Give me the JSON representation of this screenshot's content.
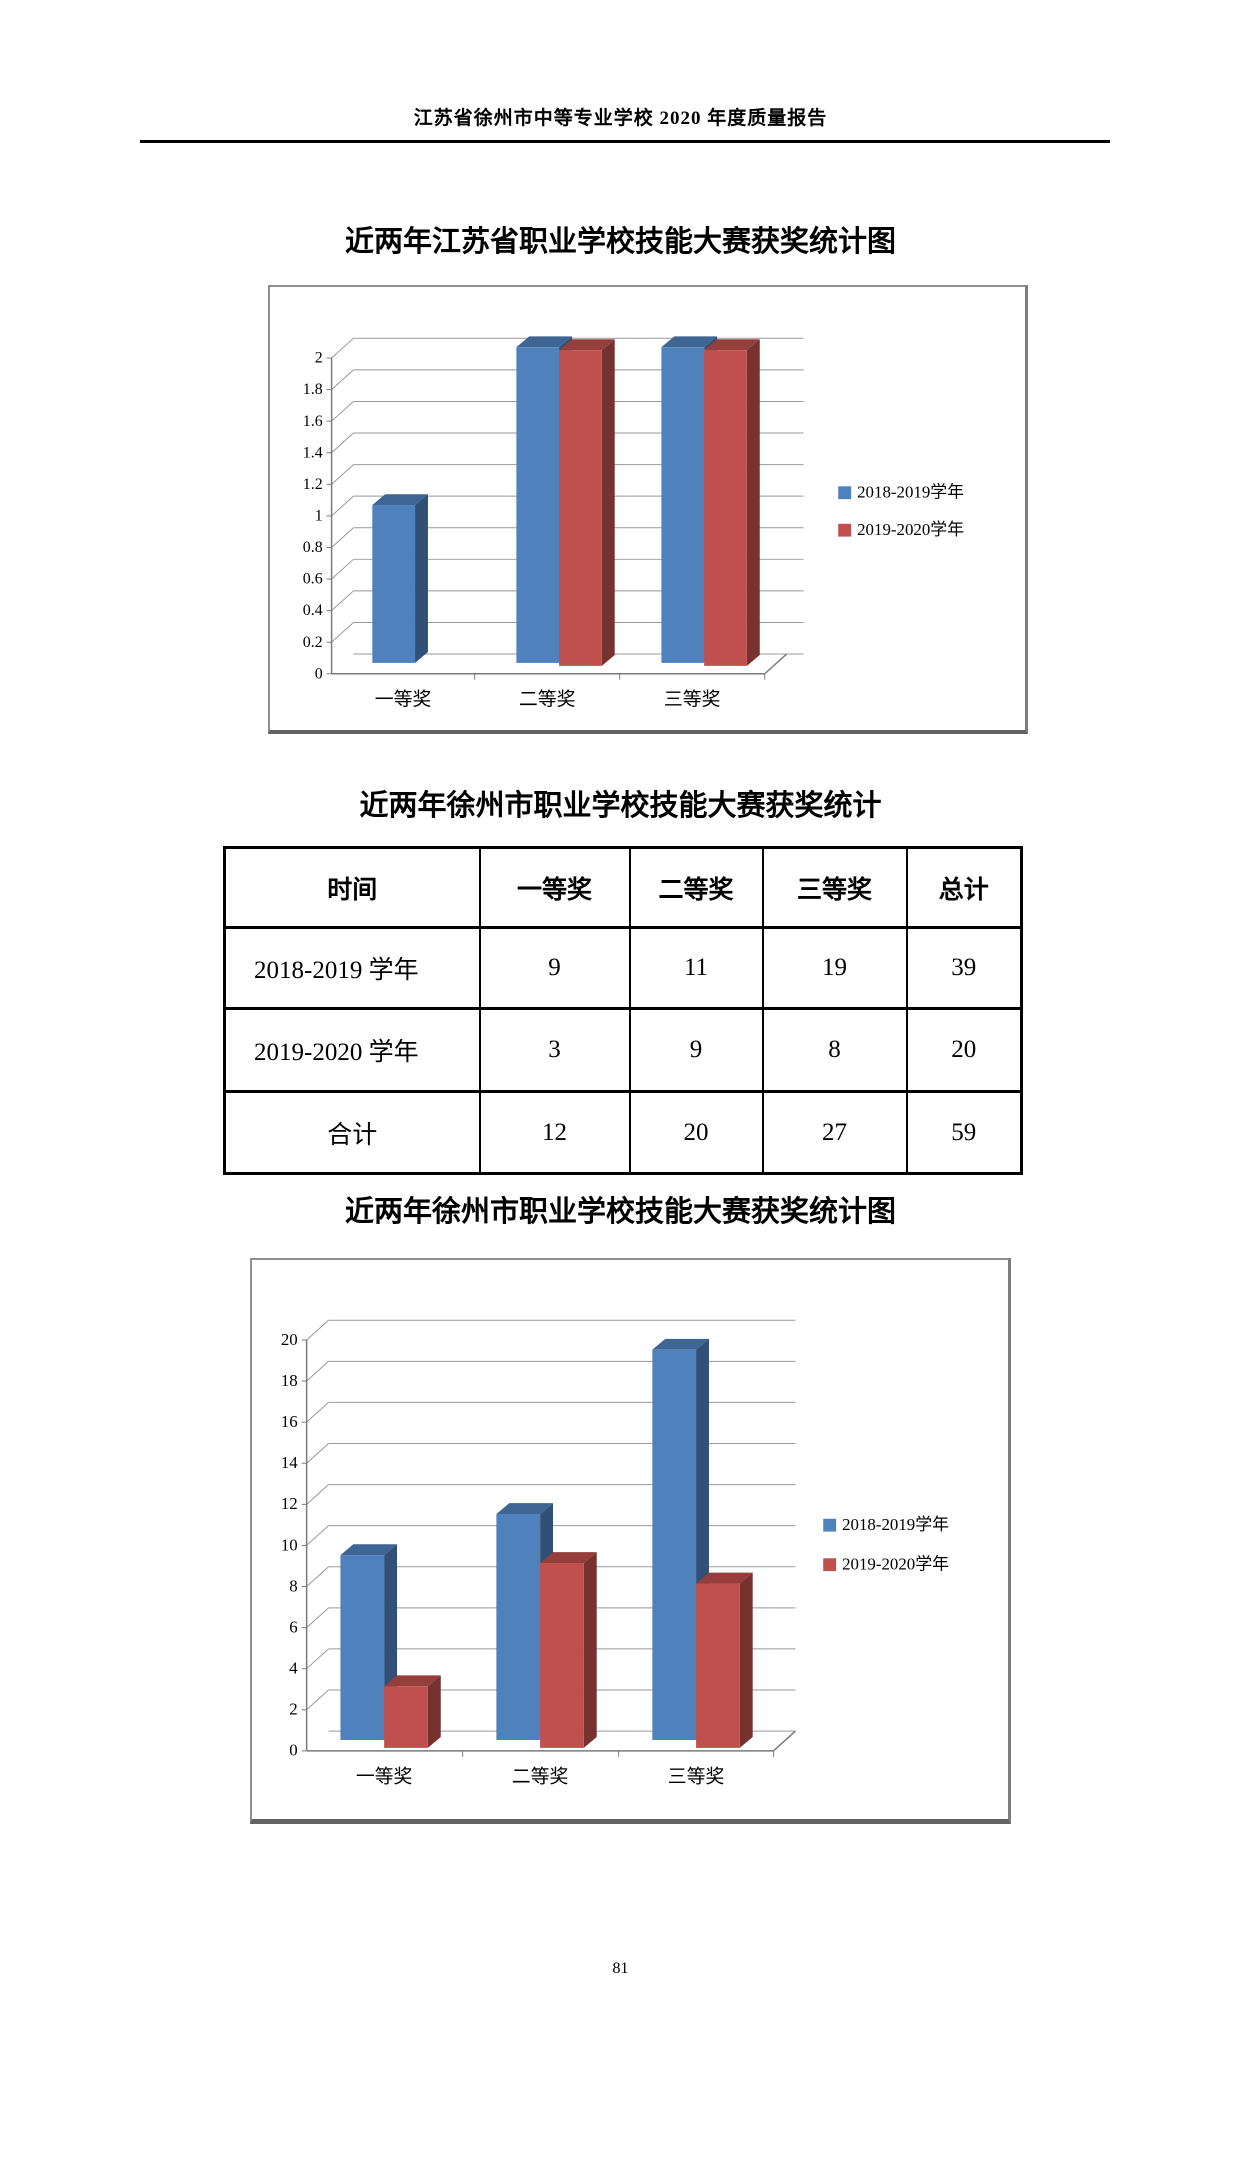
{
  "page": {
    "header": "江苏省徐州市中等专业学校 2020 年度质量报告",
    "page_number": "81"
  },
  "sections": {
    "chart1_title": "近两年江苏省职业学校技能大赛获奖统计图",
    "table_title": "近两年徐州市职业学校技能大赛获奖统计",
    "chart2_title": "近两年徐州市职业学校技能大赛获奖统计图"
  },
  "table": {
    "columns": [
      "时间",
      "一等奖",
      "二等奖",
      "三等奖",
      "总计"
    ],
    "rows": [
      [
        "2018-2019 学年",
        "9",
        "11",
        "19",
        "39"
      ],
      [
        "2019-2020 学年",
        "3",
        "9",
        "8",
        "20"
      ],
      [
        "合计",
        "12",
        "20",
        "27",
        "59"
      ]
    ]
  },
  "chart_data": [
    {
      "type": "bar",
      "style": "3d-clustered",
      "title": "近两年江苏省职业学校技能大赛获奖统计图",
      "categories": [
        "一等奖",
        "二等奖",
        "三等奖"
      ],
      "series": [
        {
          "name": "2018-2019学年",
          "color": "#4F81BD",
          "values": [
            1,
            2,
            2
          ]
        },
        {
          "name": "2019-2020学年",
          "color": "#C0504D",
          "values": [
            0,
            2,
            2
          ]
        }
      ],
      "ylim": [
        0,
        2
      ],
      "ytick": 0.2,
      "xlabel": "",
      "ylabel": "",
      "legend_position": "right",
      "grid": true
    },
    {
      "type": "bar",
      "style": "3d-clustered",
      "title": "近两年徐州市职业学校技能大赛获奖统计图",
      "categories": [
        "一等奖",
        "二等奖",
        "三等奖"
      ],
      "series": [
        {
          "name": "2018-2019学年",
          "color": "#4F81BD",
          "values": [
            9,
            11,
            19
          ]
        },
        {
          "name": "2019-2020学年",
          "color": "#C0504D",
          "values": [
            3,
            9,
            8
          ]
        }
      ],
      "ylim": [
        0,
        20
      ],
      "ytick": 2,
      "xlabel": "",
      "ylabel": "",
      "legend_position": "right",
      "grid": true
    }
  ]
}
